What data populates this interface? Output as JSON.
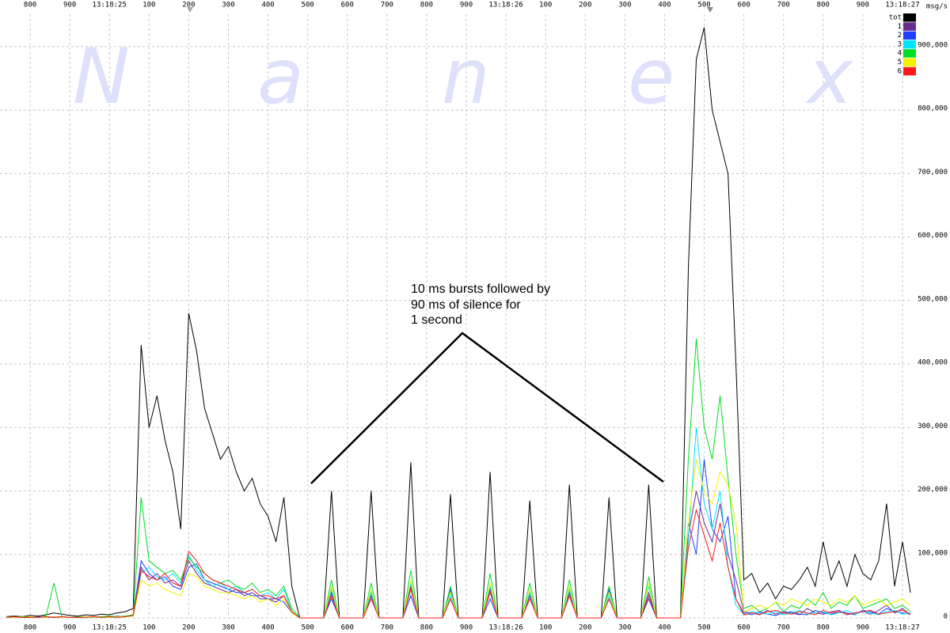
{
  "chart_data": {
    "type": "line",
    "watermark": [
      "N",
      "a",
      "n",
      "e",
      "x"
    ],
    "annotation": [
      "10 ms bursts followed by",
      "90 ms of silence for",
      "1 second"
    ],
    "y_label": "msg/s",
    "grid": true,
    "legend": "top-right",
    "xlim": [
      724,
      3024
    ],
    "ylim": [
      0,
      951000
    ],
    "xticks": [
      800,
      900,
      {
        "value": 1000,
        "label": "13:18:25"
      },
      {
        "value": 1100,
        "label": "100"
      },
      {
        "value": 1200,
        "label": "200"
      },
      {
        "value": 1300,
        "label": "300"
      },
      {
        "value": 1400,
        "label": "400"
      },
      {
        "value": 1500,
        "label": "500"
      },
      {
        "value": 1600,
        "label": "600"
      },
      {
        "value": 1700,
        "label": "700"
      },
      {
        "value": 1800,
        "label": "800"
      },
      {
        "value": 1900,
        "label": "900"
      },
      {
        "value": 2000,
        "label": "13:18:26"
      },
      {
        "value": 2100,
        "label": "100"
      },
      {
        "value": 2200,
        "label": "200"
      },
      {
        "value": 2300,
        "label": "300"
      },
      {
        "value": 2400,
        "label": "400"
      },
      {
        "value": 2500,
        "label": "500"
      },
      {
        "value": 2600,
        "label": "600"
      },
      {
        "value": 2700,
        "label": "700"
      },
      {
        "value": 2800,
        "label": "800"
      },
      {
        "value": 2900,
        "label": "900"
      },
      {
        "value": 3000,
        "label": "13:18:27"
      }
    ],
    "yticks": [
      0,
      {
        "value": 100000,
        "label": "100,000"
      },
      {
        "value": 200000,
        "label": "200,000"
      },
      {
        "value": 300000,
        "label": "300,000"
      },
      {
        "value": 400000,
        "label": "400,000"
      },
      {
        "value": 500000,
        "label": "500,000"
      },
      {
        "value": 600000,
        "label": "600,000"
      },
      {
        "value": 700000,
        "label": "700,000"
      },
      {
        "value": 800000,
        "label": "800,000"
      },
      {
        "value": 900000,
        "label": "900,000"
      }
    ],
    "x": [
      740,
      760,
      780,
      800,
      820,
      840,
      860,
      880,
      900,
      920,
      940,
      960,
      980,
      1000,
      1020,
      1040,
      1060,
      1080,
      1100,
      1120,
      1140,
      1160,
      1180,
      1200,
      1220,
      1240,
      1260,
      1280,
      1300,
      1320,
      1340,
      1360,
      1380,
      1400,
      1420,
      1440,
      1460,
      1480,
      1500,
      1520,
      1540,
      1560,
      1580,
      1600,
      1620,
      1640,
      1660,
      1680,
      1700,
      1720,
      1740,
      1760,
      1780,
      1800,
      1820,
      1840,
      1860,
      1880,
      1900,
      1920,
      1940,
      1960,
      1980,
      2000,
      2020,
      2040,
      2060,
      2080,
      2100,
      2120,
      2140,
      2160,
      2180,
      2200,
      2220,
      2240,
      2260,
      2280,
      2300,
      2320,
      2340,
      2360,
      2380,
      2400,
      2420,
      2440,
      2460,
      2480,
      2500,
      2520,
      2540,
      2560,
      2580,
      2600,
      2620,
      2640,
      2660,
      2680,
      2700,
      2720,
      2740,
      2760,
      2780,
      2800,
      2820,
      2840,
      2860,
      2880,
      2900,
      2920,
      2940,
      2960,
      2980,
      3000,
      3020
    ],
    "series": [
      {
        "name": "tot",
        "color": "#000000",
        "values": [
          2000,
          3000,
          2000,
          4000,
          3000,
          5000,
          8000,
          6000,
          4000,
          3000,
          5000,
          4000,
          6000,
          5000,
          8000,
          10000,
          15000,
          430000,
          300000,
          350000,
          280000,
          230000,
          140000,
          480000,
          420000,
          330000,
          290000,
          250000,
          270000,
          230000,
          200000,
          220000,
          180000,
          160000,
          120000,
          190000,
          50000,
          0,
          0,
          0,
          0,
          200000,
          0,
          0,
          0,
          0,
          200000,
          0,
          0,
          0,
          0,
          245000,
          0,
          0,
          0,
          0,
          195000,
          0,
          0,
          0,
          0,
          230000,
          0,
          0,
          0,
          0,
          185000,
          0,
          0,
          0,
          0,
          210000,
          0,
          0,
          0,
          0,
          190000,
          0,
          0,
          0,
          0,
          210000,
          0,
          0,
          0,
          0,
          550000,
          880000,
          930000,
          800000,
          750000,
          700000,
          400000,
          60000,
          70000,
          40000,
          55000,
          30000,
          50000,
          45000,
          60000,
          80000,
          50000,
          120000,
          60000,
          90000,
          50000,
          100000,
          70000,
          60000,
          90000,
          180000,
          50000,
          120000,
          40000
        ]
      },
      {
        "name": "1",
        "color": "#6a2c91",
        "values": [
          1000,
          1000,
          1000,
          1000,
          1000,
          2000,
          1000,
          1000,
          1000,
          1000,
          2000,
          1000,
          1000,
          2000,
          2000,
          3000,
          4000,
          80000,
          60000,
          70000,
          55000,
          60000,
          50000,
          90000,
          70000,
          55000,
          50000,
          45000,
          40000,
          45000,
          35000,
          40000,
          30000,
          30000,
          25000,
          35000,
          10000,
          0,
          0,
          0,
          0,
          40000,
          0,
          0,
          0,
          0,
          35000,
          0,
          0,
          0,
          0,
          50000,
          0,
          0,
          0,
          0,
          30000,
          0,
          0,
          0,
          0,
          45000,
          0,
          0,
          0,
          0,
          35000,
          0,
          0,
          0,
          0,
          40000,
          0,
          0,
          0,
          0,
          30000,
          0,
          0,
          0,
          0,
          40000,
          0,
          0,
          0,
          0,
          130000,
          200000,
          150000,
          120000,
          180000,
          100000,
          60000,
          10000,
          8000,
          5000,
          12000,
          6000,
          10000,
          8000,
          5000,
          15000,
          8000,
          6000,
          10000,
          12000,
          5000,
          8000,
          10000,
          6000,
          12000,
          20000,
          8000,
          15000,
          5000
        ]
      },
      {
        "name": "2",
        "color": "#1f3fff",
        "values": [
          1000,
          2000,
          1000,
          1000,
          2000,
          1000,
          1000,
          2000,
          1000,
          1000,
          1000,
          2000,
          1000,
          1000,
          3000,
          2000,
          5000,
          90000,
          70000,
          60000,
          65000,
          50000,
          45000,
          80000,
          85000,
          60000,
          55000,
          50000,
          45000,
          40000,
          40000,
          35000,
          35000,
          30000,
          30000,
          25000,
          8000,
          0,
          0,
          0,
          0,
          30000,
          0,
          0,
          0,
          0,
          40000,
          0,
          0,
          0,
          0,
          35000,
          0,
          0,
          0,
          0,
          45000,
          0,
          0,
          0,
          0,
          30000,
          0,
          0,
          0,
          0,
          40000,
          0,
          0,
          0,
          0,
          35000,
          0,
          0,
          0,
          0,
          45000,
          0,
          0,
          0,
          0,
          30000,
          0,
          0,
          0,
          0,
          150000,
          100000,
          250000,
          140000,
          120000,
          160000,
          30000,
          8000,
          5000,
          10000,
          6000,
          4000,
          8000,
          10000,
          6000,
          5000,
          12000,
          8000,
          6000,
          10000,
          8000,
          5000,
          12000,
          10000,
          6000,
          15000,
          10000,
          8000,
          6000
        ]
      },
      {
        "name": "3",
        "color": "#00e5ff",
        "values": [
          1000,
          1000,
          2000,
          1000,
          1000,
          1000,
          2000,
          1000,
          1000,
          2000,
          1000,
          1000,
          2000,
          1000,
          1000,
          2000,
          3000,
          70000,
          80000,
          65000,
          60000,
          70000,
          55000,
          100000,
          75000,
          60000,
          50000,
          55000,
          45000,
          50000,
          40000,
          45000,
          35000,
          40000,
          30000,
          45000,
          10000,
          0,
          0,
          0,
          0,
          45000,
          0,
          0,
          0,
          0,
          40000,
          0,
          0,
          0,
          0,
          55000,
          0,
          0,
          0,
          0,
          35000,
          0,
          0,
          0,
          0,
          50000,
          0,
          0,
          0,
          0,
          40000,
          0,
          0,
          0,
          0,
          45000,
          0,
          0,
          0,
          0,
          35000,
          0,
          0,
          0,
          0,
          50000,
          0,
          0,
          0,
          0,
          120000,
          300000,
          180000,
          140000,
          200000,
          80000,
          20000,
          5000,
          10000,
          8000,
          6000,
          10000,
          5000,
          8000,
          12000,
          6000,
          8000,
          10000,
          5000,
          8000,
          12000,
          6000,
          10000,
          8000,
          5000,
          10000,
          12000,
          6000,
          8000
        ]
      },
      {
        "name": "4",
        "color": "#00dd22",
        "values": [
          2000,
          1000,
          2000,
          2000,
          1000,
          3000,
          55000,
          2000,
          1000,
          2000,
          2000,
          1000,
          2000,
          3000,
          2000,
          3000,
          5000,
          190000,
          90000,
          80000,
          70000,
          75000,
          60000,
          95000,
          80000,
          70000,
          60000,
          55000,
          60000,
          50000,
          45000,
          55000,
          40000,
          45000,
          35000,
          50000,
          15000,
          0,
          0,
          0,
          0,
          60000,
          0,
          0,
          0,
          0,
          55000,
          0,
          0,
          0,
          0,
          75000,
          0,
          0,
          0,
          0,
          50000,
          0,
          0,
          0,
          0,
          70000,
          0,
          0,
          0,
          0,
          55000,
          0,
          0,
          0,
          0,
          60000,
          0,
          0,
          0,
          0,
          50000,
          0,
          0,
          0,
          0,
          65000,
          0,
          0,
          0,
          0,
          250000,
          440000,
          300000,
          250000,
          350000,
          220000,
          100000,
          15000,
          20000,
          10000,
          15000,
          25000,
          10000,
          20000,
          15000,
          30000,
          20000,
          40000,
          15000,
          25000,
          20000,
          35000,
          15000,
          20000,
          25000,
          30000,
          15000,
          20000,
          10000
        ]
      },
      {
        "name": "5",
        "color": "#f2f200",
        "values": [
          1000,
          1000,
          1000,
          2000,
          1000,
          1000,
          2000,
          1000,
          1000,
          1000,
          2000,
          1000,
          1000,
          1000,
          2000,
          2000,
          3000,
          60000,
          50000,
          55000,
          45000,
          40000,
          35000,
          70000,
          65000,
          50000,
          45000,
          40000,
          40000,
          35000,
          30000,
          35000,
          25000,
          30000,
          20000,
          30000,
          8000,
          0,
          0,
          0,
          0,
          50000,
          0,
          0,
          0,
          0,
          45000,
          0,
          0,
          0,
          0,
          60000,
          0,
          0,
          0,
          0,
          40000,
          0,
          0,
          0,
          0,
          55000,
          0,
          0,
          0,
          0,
          45000,
          0,
          0,
          0,
          0,
          50000,
          0,
          0,
          0,
          0,
          40000,
          0,
          0,
          0,
          0,
          55000,
          0,
          0,
          0,
          0,
          150000,
          250000,
          200000,
          180000,
          230000,
          210000,
          150000,
          10000,
          15000,
          20000,
          15000,
          25000,
          20000,
          30000,
          25000,
          20000,
          30000,
          25000,
          20000,
          30000,
          25000,
          35000,
          20000,
          25000,
          30000,
          20000,
          25000,
          30000,
          20000
        ]
      },
      {
        "name": "6",
        "color": "#ff1a1a",
        "values": [
          1000,
          2000,
          1000,
          1000,
          1000,
          2000,
          1000,
          2000,
          1000,
          1000,
          1000,
          2000,
          1000,
          2000,
          1000,
          2000,
          4000,
          75000,
          65000,
          60000,
          70000,
          55000,
          50000,
          105000,
          90000,
          70000,
          60000,
          55000,
          50000,
          45000,
          40000,
          45000,
          35000,
          35000,
          30000,
          35000,
          10000,
          0,
          0,
          0,
          0,
          35000,
          0,
          0,
          0,
          0,
          30000,
          0,
          0,
          0,
          0,
          45000,
          0,
          0,
          0,
          0,
          30000,
          0,
          0,
          0,
          0,
          40000,
          0,
          0,
          0,
          0,
          30000,
          0,
          0,
          0,
          0,
          35000,
          0,
          0,
          0,
          0,
          30000,
          0,
          0,
          0,
          0,
          35000,
          0,
          0,
          0,
          0,
          110000,
          170000,
          130000,
          90000,
          150000,
          80000,
          30000,
          5000,
          8000,
          6000,
          10000,
          12000,
          8000,
          6000,
          10000,
          8000,
          5000,
          12000,
          8000,
          10000,
          6000,
          8000,
          10000,
          12000,
          6000,
          8000,
          10000,
          12000,
          6000
        ]
      }
    ]
  }
}
